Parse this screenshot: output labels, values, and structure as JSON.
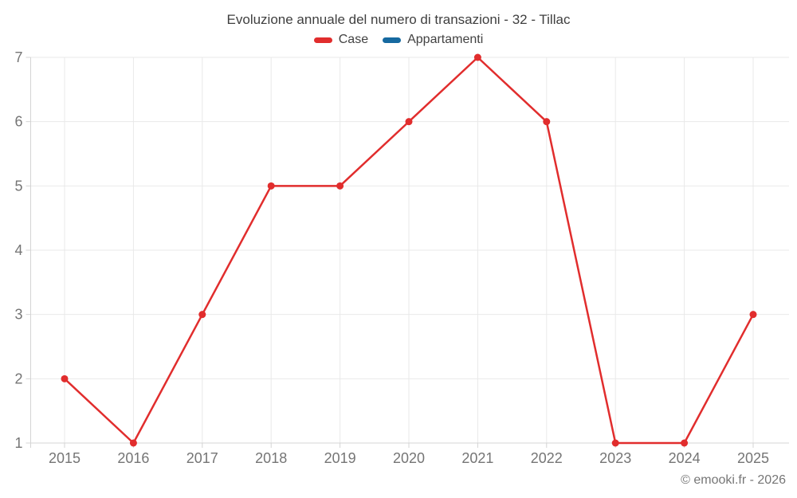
{
  "chart_data": {
    "type": "line",
    "title": "Evoluzione annuale del numero di transazioni - 32 - Tillac",
    "x": [
      2015,
      2016,
      2017,
      2018,
      2019,
      2020,
      2021,
      2022,
      2023,
      2024,
      2025
    ],
    "series": [
      {
        "name": "Case",
        "color": "#e12d2d",
        "values": [
          2,
          1,
          3,
          5,
          5,
          6,
          7,
          6,
          1,
          1,
          3
        ]
      },
      {
        "name": "Appartamenti",
        "color": "#1669a0",
        "values": []
      }
    ],
    "ylim": [
      1,
      7
    ],
    "yticks": [
      1,
      2,
      3,
      4,
      5,
      6,
      7
    ],
    "grid": true,
    "legend_position": "top",
    "marker_radius": 4.5,
    "line_width": 2.5
  },
  "chart_style": {
    "grid_color": "#e9e9e9",
    "axis_color": "#d4d4d4",
    "label_color": "#757575",
    "label_font_size": 18
  },
  "footer": {
    "watermark": "© emooki.fr - 2026"
  }
}
